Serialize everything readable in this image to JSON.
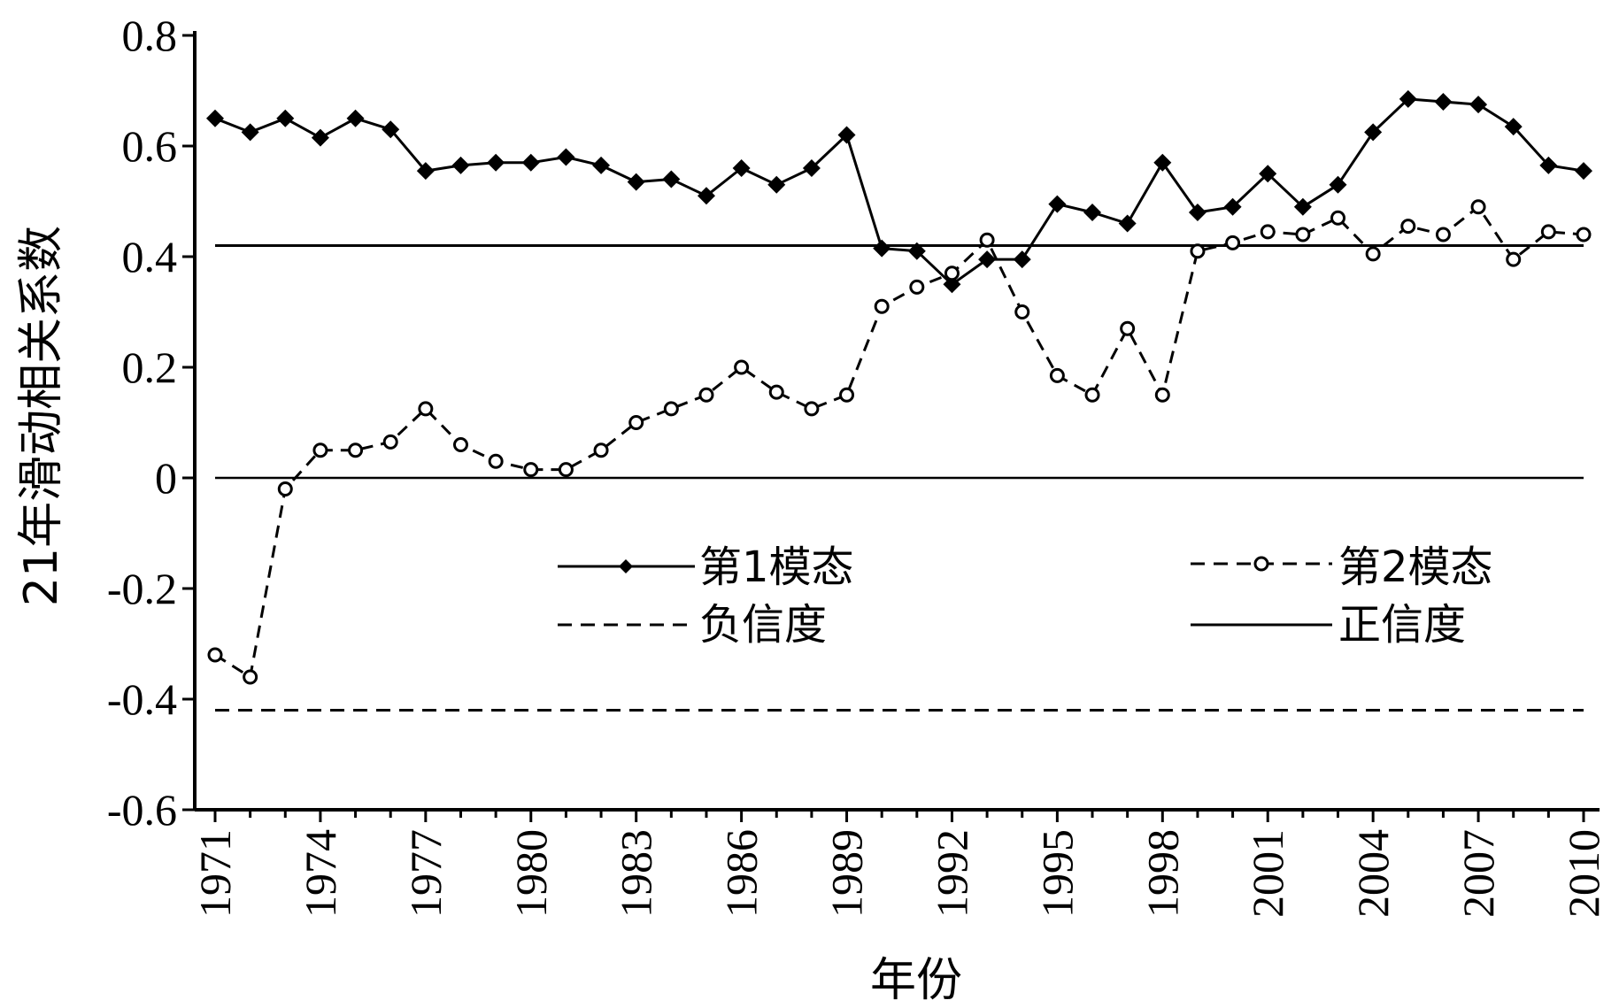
{
  "chart_data": {
    "type": "line",
    "xlabel": "年份",
    "ylabel": "21年滑动相关系数",
    "ylim": [
      -0.6,
      0.8
    ],
    "yticks": [
      0.8,
      0.6,
      0.4,
      0.2,
      0,
      -0.2,
      -0.4,
      -0.6
    ],
    "ytick_labels": [
      "0.8",
      "0.6",
      "0.4",
      "0.2",
      "0",
      "-0.2",
      "-0.4",
      "-0.6"
    ],
    "xlim": [
      1971,
      2010
    ],
    "xticks": [
      1971,
      1974,
      1977,
      1980,
      1983,
      1986,
      1989,
      1992,
      1995,
      1998,
      2001,
      2004,
      2007,
      2010
    ],
    "xtick_labels": [
      "1971",
      "1974",
      "1977",
      "1980",
      "1983",
      "1986",
      "1989",
      "1992",
      "1995",
      "1998",
      "2001",
      "2004",
      "2007",
      "2010"
    ],
    "x": [
      1971,
      1972,
      1973,
      1974,
      1975,
      1976,
      1977,
      1978,
      1979,
      1980,
      1981,
      1982,
      1983,
      1984,
      1985,
      1986,
      1987,
      1988,
      1989,
      1990,
      1991,
      1992,
      1993,
      1994,
      1995,
      1996,
      1997,
      1998,
      1999,
      2000,
      2001,
      2002,
      2003,
      2004,
      2005,
      2006,
      2007,
      2008,
      2009,
      2010
    ],
    "series": [
      {
        "name": "第1模态",
        "style": "solid-filled-diamond",
        "color": "#000000",
        "values": [
          0.65,
          0.625,
          0.65,
          0.615,
          0.65,
          0.63,
          0.555,
          0.565,
          0.57,
          0.57,
          0.58,
          0.565,
          0.535,
          0.54,
          0.51,
          0.56,
          0.53,
          0.56,
          0.62,
          0.415,
          0.41,
          0.35,
          0.395,
          0.395,
          0.495,
          0.48,
          0.46,
          0.57,
          0.48,
          0.49,
          0.55,
          0.49,
          0.53,
          0.625,
          0.685,
          0.68,
          0.675,
          0.635,
          0.565,
          0.555
        ]
      },
      {
        "name": "第2模态",
        "style": "dashed-open-circle",
        "color": "#000000",
        "values": [
          -0.32,
          -0.36,
          -0.02,
          0.05,
          0.05,
          0.065,
          0.125,
          0.06,
          0.03,
          0.015,
          0.015,
          0.05,
          0.1,
          0.125,
          0.15,
          0.2,
          0.155,
          0.125,
          0.15,
          0.31,
          0.345,
          0.37,
          0.43,
          0.3,
          0.185,
          0.15,
          0.27,
          0.15,
          0.41,
          0.425,
          0.445,
          0.44,
          0.47,
          0.405,
          0.455,
          0.44,
          0.49,
          0.395,
          0.445,
          0.44
        ]
      }
    ],
    "reference_lines": [
      {
        "name": "负信度",
        "value": -0.42,
        "style": "dashed"
      },
      {
        "name": "正信度",
        "value": 0.42,
        "style": "solid"
      },
      {
        "name": "",
        "value": 0,
        "style": "solid-thin"
      }
    ],
    "legend": {
      "placement": "center",
      "items": [
        {
          "label": "第1模态",
          "style": "solid-filled-diamond"
        },
        {
          "label": "第2模态",
          "style": "dashed-open-circle"
        },
        {
          "label": "负信度",
          "style": "dashed"
        },
        {
          "label": "正信度",
          "style": "solid"
        }
      ]
    }
  }
}
